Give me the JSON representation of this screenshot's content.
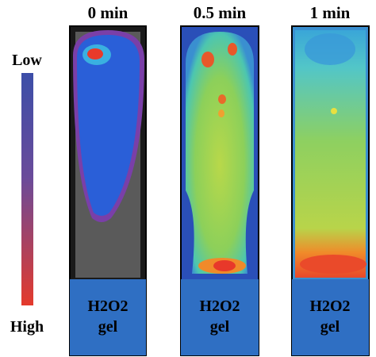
{
  "colorbar": {
    "top_label": "Low",
    "bottom_label": "High"
  },
  "panels": [
    {
      "title": "0 min",
      "gel_label": [
        "H2O2",
        "gel"
      ]
    },
    {
      "title": "0.5 min",
      "gel_label": [
        "H2O2",
        "gel"
      ]
    },
    {
      "title": "1 min",
      "gel_label": [
        "H2O2",
        "gel"
      ]
    }
  ]
}
